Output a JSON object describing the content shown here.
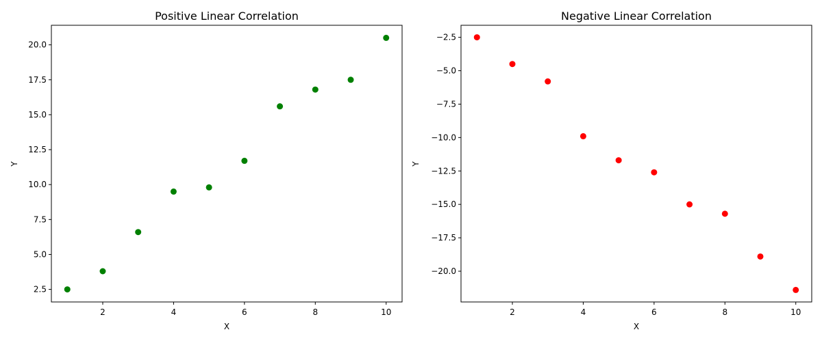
{
  "chart_data": [
    {
      "type": "scatter",
      "title": "Positive Linear Correlation",
      "xlabel": "X",
      "ylabel": "Y",
      "xlim": [
        0.55,
        10.45
      ],
      "ylim": [
        1.6,
        21.4
      ],
      "x_ticks": [
        2,
        4,
        6,
        8,
        10
      ],
      "x_tick_labels": [
        "2",
        "4",
        "6",
        "8",
        "10"
      ],
      "y_ticks": [
        2.5,
        5.0,
        7.5,
        10.0,
        12.5,
        15.0,
        17.5,
        20.0
      ],
      "y_tick_labels": [
        "2.5",
        "5.0",
        "7.5",
        "10.0",
        "12.5",
        "15.0",
        "17.5",
        "20.0"
      ],
      "grid": false,
      "color": "#008000",
      "series": [
        {
          "x": [
            1,
            2,
            3,
            4,
            5,
            6,
            7,
            8,
            9,
            10
          ],
          "y": [
            2.5,
            3.8,
            6.6,
            9.5,
            9.8,
            11.7,
            15.6,
            16.8,
            17.5,
            20.5
          ]
        }
      ]
    },
    {
      "type": "scatter",
      "title": "Negative Linear Correlation",
      "xlabel": "X",
      "ylabel": "Y",
      "xlim": [
        0.55,
        10.45
      ],
      "ylim": [
        -22.3,
        -1.6
      ],
      "x_ticks": [
        2,
        4,
        6,
        8,
        10
      ],
      "x_tick_labels": [
        "2",
        "4",
        "6",
        "8",
        "10"
      ],
      "y_ticks": [
        -2.5,
        -5.0,
        -7.5,
        -10.0,
        -12.5,
        -15.0,
        -17.5,
        -20.0
      ],
      "y_tick_labels": [
        "−2.5",
        "−5.0",
        "−7.5",
        "−10.0",
        "−12.5",
        "−15.0",
        "−17.5",
        "−20.0"
      ],
      "grid": false,
      "color": "#ff0000",
      "series": [
        {
          "x": [
            1,
            2,
            3,
            4,
            5,
            6,
            7,
            8,
            9,
            10
          ],
          "y": [
            -2.5,
            -4.5,
            -5.8,
            -9.9,
            -11.7,
            -12.6,
            -15.0,
            -15.7,
            -18.9,
            -21.4
          ]
        }
      ]
    }
  ]
}
